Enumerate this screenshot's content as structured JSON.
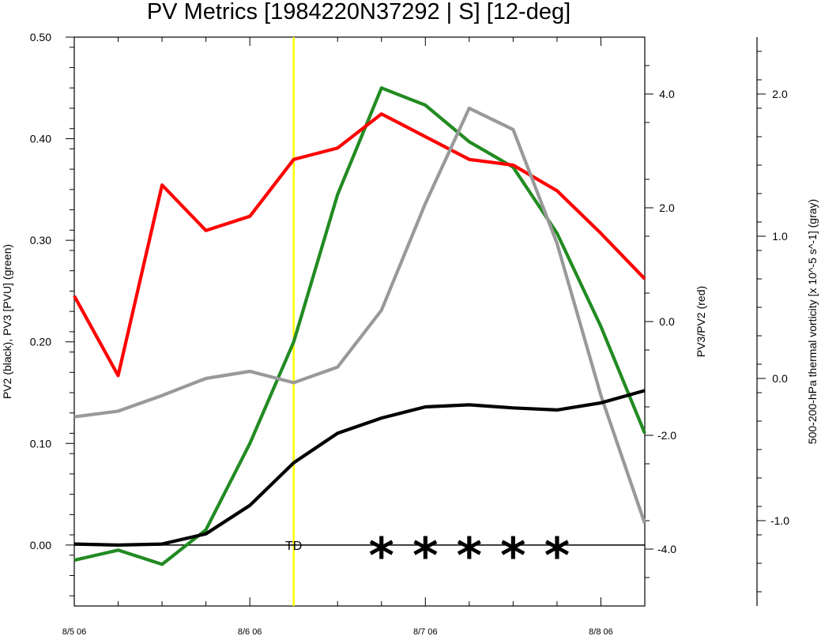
{
  "chart_data": {
    "type": "line",
    "title": "PV Metrics [1984220N37292 | S] [12-deg]",
    "x_ticks": [
      "8/5 06",
      "8/6 06",
      "8/7 06",
      "8/8 06"
    ],
    "x": [
      0,
      0.25,
      0.5,
      0.75,
      1.0,
      1.25,
      1.5,
      1.75,
      2.0,
      2.25,
      2.5,
      2.75,
      3.0,
      3.25
    ],
    "xlim": [
      0,
      3.25
    ],
    "left_axis": {
      "label": "PV2 (black), PV3 [PVU] (green)",
      "ylim": [
        -0.06,
        0.5
      ],
      "ticks": [
        "0.00",
        "0.10",
        "0.20",
        "0.30",
        "0.40",
        "0.50"
      ]
    },
    "right_axis_1": {
      "label": "PV3/PV2 (red)",
      "ylim": [
        -5,
        5
      ],
      "ticks": [
        "-4.0",
        "-2.0",
        "0.0",
        "2.0",
        "4.0"
      ]
    },
    "right_axis_2": {
      "label": "500-200-hPa thermal vorticity [x 10^-5 s^-1] (gray)",
      "ylim": [
        -1.6,
        2.4
      ],
      "ticks": [
        "-1.0",
        "0.0",
        "1.0",
        "2.0"
      ]
    },
    "series": [
      {
        "color": "#000000",
        "axis": "left",
        "values": [
          0.001,
          0.0,
          0.001,
          0.011,
          0.039,
          0.081,
          0.11,
          0.125,
          0.136,
          0.138,
          0.135,
          0.133,
          0.14,
          0.152
        ]
      },
      {
        "color": "#228b22",
        "axis": "left",
        "values": [
          -0.015,
          -0.005,
          -0.019,
          0.015,
          0.1,
          0.2,
          0.345,
          0.45,
          0.433,
          0.397,
          0.372,
          0.307,
          0.215,
          0.11
        ]
      },
      {
        "color": "#ff0000",
        "axis": "right1",
        "values": [
          0.45,
          -0.95,
          2.4,
          1.6,
          1.85,
          2.85,
          3.05,
          3.65,
          3.25,
          2.85,
          2.75,
          2.3,
          1.55,
          0.75
        ]
      },
      {
        "color": "#999999",
        "axis": "right2",
        "values": [
          -0.27,
          -0.23,
          -0.12,
          0.0,
          0.05,
          -0.03,
          0.08,
          0.48,
          1.23,
          1.9,
          1.75,
          0.95,
          -0.12,
          -1.02
        ]
      }
    ],
    "reference_lines": [
      {
        "type": "vertical",
        "x": 1.25,
        "color": "#ffff00"
      },
      {
        "type": "horizontal",
        "y": 0.0,
        "axis": "left",
        "color": "#000000"
      }
    ],
    "annotations": [
      {
        "text": "TD",
        "x": 1.25
      },
      {
        "text": "*",
        "x": 1.75
      },
      {
        "text": "*",
        "x": 2.0
      },
      {
        "text": "*",
        "x": 2.25
      },
      {
        "text": "*",
        "x": 2.5
      },
      {
        "text": "*",
        "x": 2.75
      }
    ]
  }
}
